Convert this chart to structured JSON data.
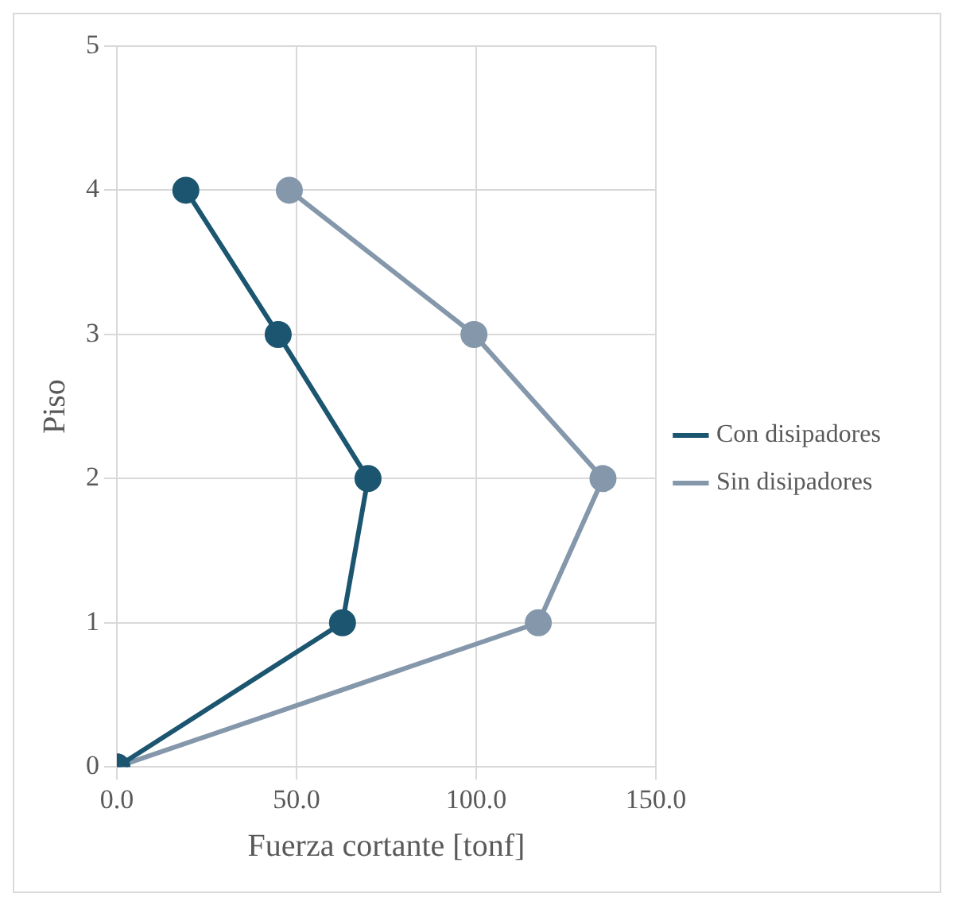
{
  "chart_data": {
    "type": "line",
    "xlabel": "Fuerza cortante [tonf]",
    "ylabel": "Piso",
    "series": [
      {
        "name": "Con disipadores",
        "color": "#1b5570",
        "x": [
          0,
          62.8,
          69.9,
          44.9,
          19.2
        ],
        "values": [
          0,
          1,
          2,
          3,
          4
        ]
      },
      {
        "name": "Sin disipadores",
        "color": "#8497ab",
        "x": [
          0,
          117.3,
          135.3,
          99.4,
          48
        ],
        "values": [
          0,
          1,
          2,
          3,
          4
        ]
      }
    ],
    "xlim": [
      0,
      150
    ],
    "xticks": [
      {
        "value": 0,
        "label": "0.0"
      },
      {
        "value": 50,
        "label": "50.0"
      },
      {
        "value": 100,
        "label": "100.0"
      },
      {
        "value": 150,
        "label": "150.0"
      }
    ],
    "ylim": [
      0,
      5
    ],
    "yticks": [
      0,
      1,
      2,
      3,
      4,
      5
    ],
    "grid": true,
    "legend": "right",
    "marker": "circle",
    "line_style": "solid"
  }
}
